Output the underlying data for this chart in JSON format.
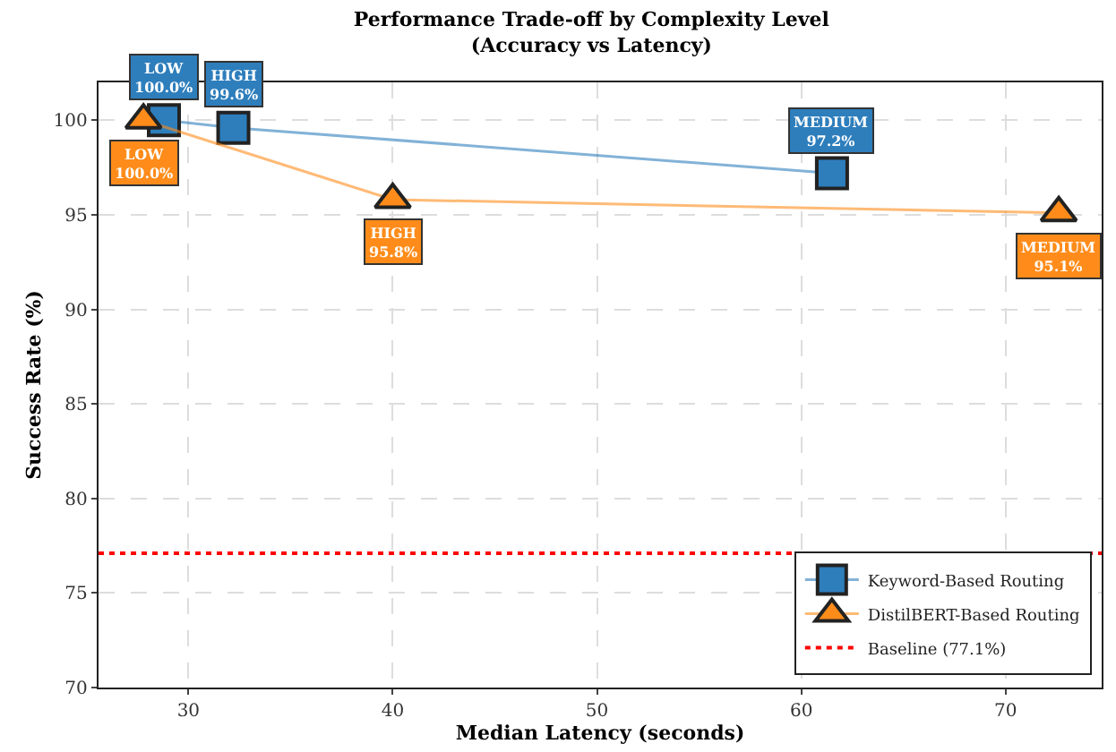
{
  "chart_data": {
    "type": "line",
    "title": "Performance Trade-off by Complexity Level\n(Accuracy vs Latency)",
    "xlabel": "Median Latency (seconds)",
    "ylabel": "Success Rate (%)",
    "series": [
      {
        "name": "Keyword-Based Routing",
        "color": "#2e7ebc",
        "marker": "square",
        "x": [
          28.8,
          32.2,
          61.5
        ],
        "values": [
          100.0,
          99.6,
          97.2
        ],
        "value_labels": [
          "LOW\n100.0%",
          "HIGH\n99.6%",
          "MEDIUM\n97.2%"
        ]
      },
      {
        "name": "DistilBERT-Based Routing",
        "color": "#ff8c1a",
        "marker": "triangle",
        "x": [
          27.8,
          40.0,
          72.6
        ],
        "values": [
          100.0,
          95.8,
          95.1
        ],
        "value_labels": [
          "LOW\n100.0%",
          "HIGH\n95.8%",
          "MEDIUM\n95.1%"
        ]
      }
    ],
    "ref_lines": [
      {
        "axis": "y",
        "value": 77.1,
        "label": "Baseline (77.1%)",
        "color": "#ff0000",
        "line_style": "dotted"
      }
    ],
    "xlim": [
      25.6,
      74.7
    ],
    "xticks": [
      30,
      40,
      50,
      60,
      70
    ],
    "ylim": [
      70,
      102
    ],
    "yticks": [
      70,
      75,
      80,
      85,
      90,
      95,
      100
    ],
    "grid": true,
    "legend": "bottom right"
  }
}
